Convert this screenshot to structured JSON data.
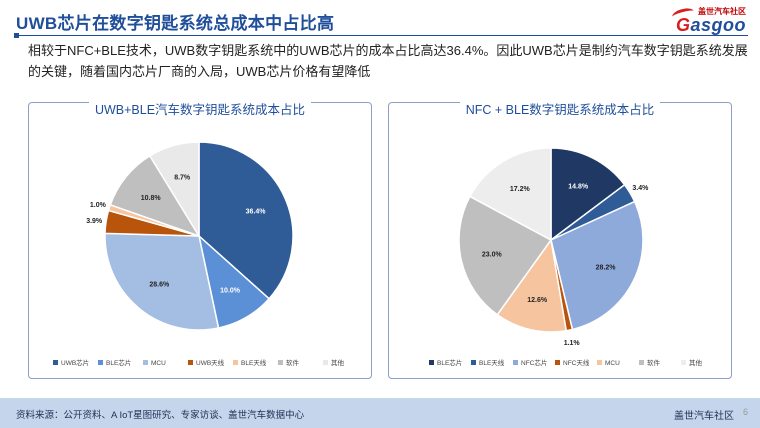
{
  "header": {
    "title": "UWB芯片在数字钥匙系统总成本中占比高",
    "brand_cn": "盖世汽车社区",
    "brand_en_a": "G",
    "brand_en_b": "asgoo"
  },
  "subtitle": "相较于NFC+BLE技术，UWB数字钥匙系统中的UWB芯片的成本占比高达36.4%。因此UWB芯片是制约汽车数字钥匙系统发展的关键，随着国内芯片厂商的入局，UWB芯片价格有望降低",
  "footer": {
    "source": "资料来源：公开资料、A IoT星图研究、专家访谈、盖世汽车数据中心",
    "brand": "盖世汽车社区",
    "page": "6"
  },
  "chart_data": [
    {
      "type": "pie",
      "title": "UWB+BLE汽车数字钥匙系统成本占比",
      "categories": [
        "UWB芯片",
        "BLE芯片",
        "MCU",
        "UWB天线",
        "BLE天线",
        "软件",
        "其他"
      ],
      "values": [
        36.4,
        10.0,
        28.6,
        3.9,
        1.0,
        10.8,
        8.7
      ],
      "labels": [
        "36.4%",
        "10.0%",
        "28.6%",
        "3.9%",
        "1.0%",
        "10.8%",
        "8.7%"
      ],
      "colors": [
        "#2f5b97",
        "#5b8fd6",
        "#a3bde3",
        "#b8540b",
        "#f7c4a0",
        "#bfbfbf",
        "#e9e9e9"
      ],
      "legend": "bottom"
    },
    {
      "type": "pie",
      "title": "NFC + BLE数字钥匙系统成本占比",
      "categories": [
        "BLE芯片",
        "BLE天线",
        "NFC芯片",
        "NFC天线",
        "MCU",
        "软件",
        "其他"
      ],
      "values": [
        14.8,
        3.4,
        28.2,
        1.1,
        12.6,
        23.0,
        17.2
      ],
      "labels": [
        "14.8%",
        "3.4%",
        "28.2%",
        "1.1%",
        "12.6%",
        "23.0%",
        "17.2%"
      ],
      "colors": [
        "#1f3864",
        "#2f5b97",
        "#8eaadb",
        "#b8540b",
        "#f7c4a0",
        "#bfbfbf",
        "#ededed"
      ],
      "legend": "bottom"
    }
  ]
}
